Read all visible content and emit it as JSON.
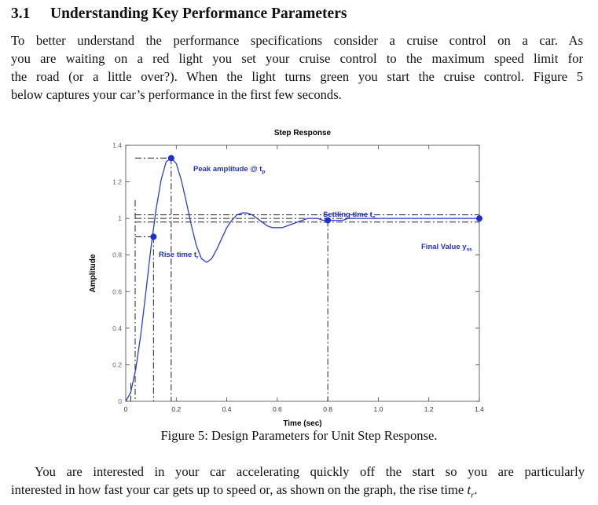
{
  "section": {
    "number": "3.1",
    "title": "Understanding Key Performance Parameters"
  },
  "paragraph1": {
    "lines": [
      "To better understand the performance specifications consider a cruise control on a car. As",
      "you are waiting on a red light you set your cruise control to the maximum speed limit for",
      "the road (or a little over?). When the light turns green you start the cruise control. Figure 5",
      "below captures your car’s performance in the first few seconds."
    ]
  },
  "figure": {
    "caption": "Figure 5: Design Parameters for Unit Step Response.",
    "annotations": {
      "peak": "Peak amplitude @ t",
      "peak_sub": "p",
      "settling": "Settling time t",
      "settling_sub": "s",
      "rise": "Rise time t",
      "rise_sub": "r",
      "final": "Final Value y",
      "final_sub": "ss"
    }
  },
  "chart_data": {
    "type": "line",
    "title": "Step Response",
    "xlabel": "Time (sec)",
    "ylabel": "Amplitude",
    "xlim": [
      0,
      1.4
    ],
    "ylim": [
      0,
      1.4
    ],
    "xticks": [
      "0",
      "0.2",
      "0.4",
      "0.6",
      "0.8",
      "1.0",
      "1.2",
      "1.4"
    ],
    "yticks": [
      "0",
      "0.2",
      "0.4",
      "0.6",
      "0.8",
      "1",
      "1.2",
      "1.4"
    ],
    "grid": false,
    "series": [
      {
        "color": "#2b3fd6",
        "x": [
          0,
          0.02,
          0.04,
          0.06,
          0.08,
          0.1,
          0.12,
          0.14,
          0.16,
          0.18,
          0.2,
          0.22,
          0.24,
          0.26,
          0.28,
          0.3,
          0.32,
          0.34,
          0.36,
          0.38,
          0.4,
          0.42,
          0.44,
          0.46,
          0.48,
          0.5,
          0.52,
          0.54,
          0.56,
          0.58,
          0.6,
          0.62,
          0.64,
          0.66,
          0.68,
          0.7,
          0.72,
          0.74,
          0.76,
          0.78,
          0.8,
          0.82,
          0.84,
          0.86,
          0.88,
          0.9,
          0.95,
          1.0,
          1.05,
          1.1,
          1.15,
          1.2,
          1.25,
          1.3,
          1.35,
          1.4
        ],
        "y": [
          0,
          0.05,
          0.18,
          0.37,
          0.6,
          0.84,
          1.05,
          1.21,
          1.31,
          1.33,
          1.3,
          1.21,
          1.09,
          0.96,
          0.85,
          0.78,
          0.76,
          0.78,
          0.83,
          0.89,
          0.95,
          0.99,
          1.02,
          1.03,
          1.03,
          1.02,
          1.0,
          0.98,
          0.96,
          0.95,
          0.95,
          0.95,
          0.96,
          0.97,
          0.98,
          0.99,
          1.0,
          1.0,
          1.0,
          0.99,
          0.99,
          0.99,
          0.99,
          0.99,
          1.0,
          1.0,
          1.0,
          1.0,
          1.0,
          1.0,
          1.0,
          1.0,
          1.0,
          1.0,
          1.0,
          1.0
        ]
      }
    ],
    "markers": [
      {
        "label": "peak",
        "x": 0.18,
        "y": 1.33
      },
      {
        "label": "rise",
        "x": 0.11,
        "y": 0.9
      },
      {
        "label": "settling",
        "x": 0.8,
        "y": 0.99
      },
      {
        "label": "final",
        "x": 1.4,
        "y": 1.0
      }
    ],
    "reference_lines": {
      "upper_band": 1.02,
      "lower_band": 0.98
    }
  },
  "paragraph2": {
    "lines": [
      "You are interested in your car accelerating quickly off the start so you are particularly",
      "interested in how fast your car gets up to speed or, as shown on the graph, the rise time "
    ],
    "math": "t",
    "math_sub": "r",
    "math_tail": "."
  }
}
